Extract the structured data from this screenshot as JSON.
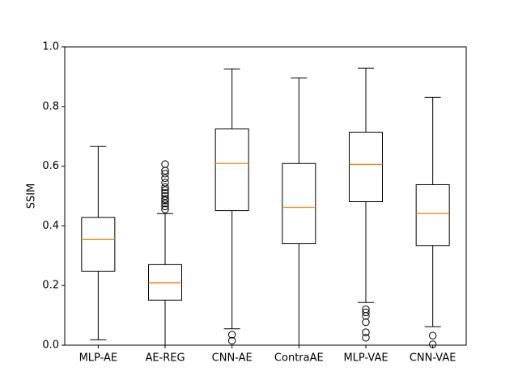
{
  "chart_data": {
    "type": "box",
    "ylabel": "SSIM",
    "xlabel": "",
    "title": "",
    "ylim": [
      0,
      1
    ],
    "yticks": [
      "0.0",
      "0.2",
      "0.4",
      "0.6",
      "0.8",
      "1.0"
    ],
    "grid": false,
    "colors": {
      "box": "#000000",
      "median": "#ff7f0e",
      "flier": "#000000"
    },
    "boxes": [
      {
        "label": "MLP-AE",
        "whislo": 0.018,
        "q1": 0.248,
        "med": 0.354,
        "q3": 0.428,
        "whishi": 0.666,
        "fliers": []
      },
      {
        "label": "AE-REG",
        "whislo": 0.0,
        "q1": 0.151,
        "med": 0.209,
        "q3": 0.27,
        "whishi": 0.441,
        "fliers": [
          0.455,
          0.465,
          0.475,
          0.485,
          0.49,
          0.5,
          0.51,
          0.52,
          0.53,
          0.545,
          0.56,
          0.575,
          0.585,
          0.607
        ]
      },
      {
        "label": "CNN-AE",
        "whislo": 0.055,
        "q1": 0.451,
        "med": 0.609,
        "q3": 0.725,
        "whishi": 0.926,
        "fliers": [
          0.035,
          0.015
        ]
      },
      {
        "label": "ContraAE",
        "whislo": 0.0,
        "q1": 0.34,
        "med": 0.462,
        "q3": 0.609,
        "whishi": 0.896,
        "fliers": []
      },
      {
        "label": "MLP-VAE",
        "whislo": 0.143,
        "q1": 0.481,
        "med": 0.606,
        "q3": 0.714,
        "whishi": 0.929,
        "fliers": [
          0.12,
          0.11,
          0.098,
          0.077,
          0.043,
          0.025
        ]
      },
      {
        "label": "CNN-VAE",
        "whislo": 0.062,
        "q1": 0.334,
        "med": 0.441,
        "q3": 0.538,
        "whishi": 0.831,
        "fliers": [
          0.032,
          0.003
        ]
      }
    ]
  }
}
